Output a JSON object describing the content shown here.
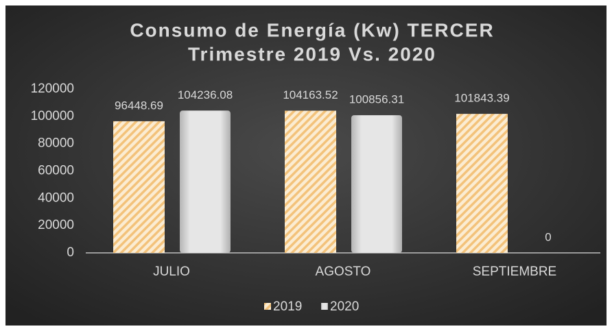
{
  "chart_data": {
    "type": "bar",
    "title": [
      "Consumo de Energía (Kw) TERCER",
      "Trimestre 2019 Vs. 2020"
    ],
    "categories": [
      "JULIO",
      "AGOSTO",
      "SEPTIEMBRE"
    ],
    "series": [
      {
        "name": "2019",
        "color": "#f3c27a",
        "values": [
          96448.69,
          104163.52,
          101843.39
        ]
      },
      {
        "name": "2020",
        "color": "#d9d9d9",
        "values": [
          104236.08,
          100856.31,
          0
        ]
      }
    ],
    "ylim": [
      0,
      120000
    ],
    "yticks": [
      0,
      20000,
      40000,
      60000,
      80000,
      100000,
      120000
    ],
    "grid": false,
    "legend": "bottom"
  }
}
